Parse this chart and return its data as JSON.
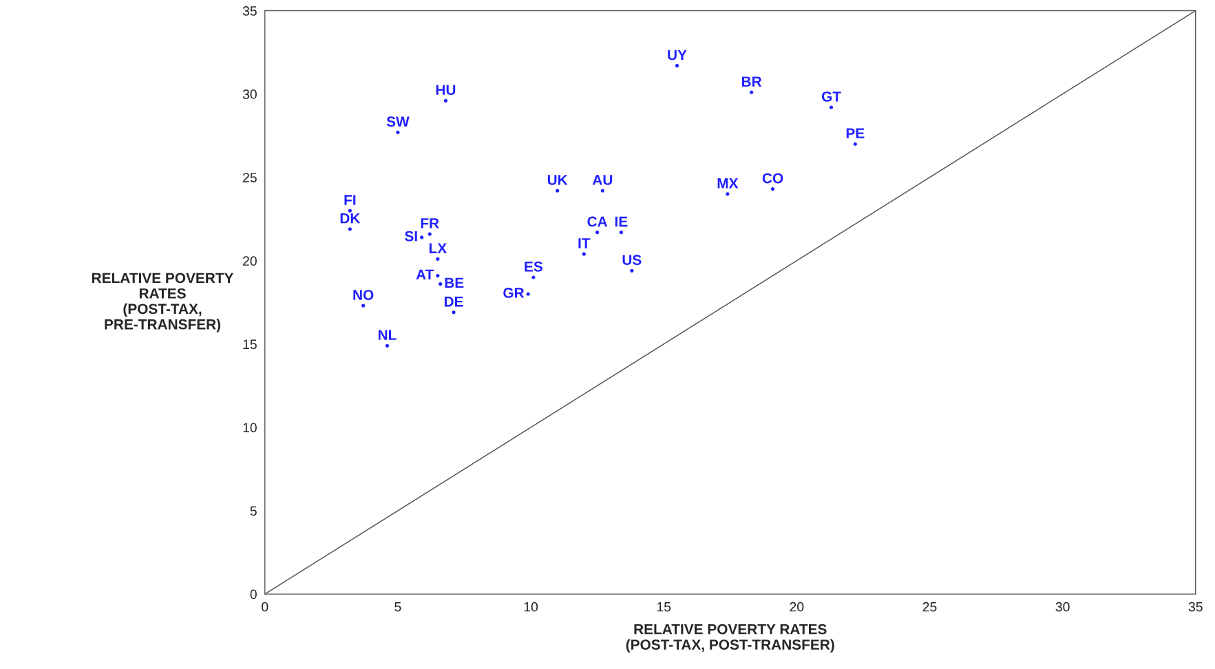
{
  "chart_data": {
    "type": "scatter",
    "xlabel": "RELATIVE POVERTY RATES\n(POST-TAX, POST-TRANSFER)",
    "ylabel": "RELATIVE POVERTY\nRATES\n(POST-TAX,\nPRE-TRANSFER)",
    "xlim": [
      0,
      35
    ],
    "ylim": [
      0,
      35
    ],
    "xticks": [
      0,
      5,
      10,
      15,
      20,
      25,
      30,
      35
    ],
    "yticks": [
      0,
      5,
      10,
      15,
      20,
      25,
      30,
      35
    ],
    "grid": false,
    "legend": false,
    "marker": "circle",
    "series": [
      {
        "name": "UY",
        "color": "#1f1fff",
        "x": [
          15.5
        ],
        "values": [
          31.7
        ]
      },
      {
        "name": "BR",
        "color": "#1f1fff",
        "x": [
          18.3
        ],
        "values": [
          30.1
        ]
      },
      {
        "name": "GT",
        "color": "#1f1fff",
        "x": [
          21.3
        ],
        "values": [
          29.2
        ]
      },
      {
        "name": "PE",
        "color": "#1f1fff",
        "x": [
          22.2
        ],
        "values": [
          27.0
        ]
      },
      {
        "name": "HU",
        "color": "#1f1fff",
        "x": [
          6.8
        ],
        "values": [
          29.6
        ]
      },
      {
        "name": "SW",
        "color": "#1f1fff",
        "x": [
          5.0
        ],
        "values": [
          27.7
        ]
      },
      {
        "name": "UK",
        "color": "#1f1fff",
        "x": [
          11.0
        ],
        "values": [
          24.2
        ]
      },
      {
        "name": "AU",
        "color": "#1f1fff",
        "x": [
          12.7
        ],
        "values": [
          24.2
        ]
      },
      {
        "name": "MX",
        "color": "#1f1fff",
        "x": [
          17.4
        ],
        "values": [
          24.0
        ]
      },
      {
        "name": "CO",
        "color": "#1f1fff",
        "x": [
          19.1
        ],
        "values": [
          24.3
        ]
      },
      {
        "name": "FI",
        "color": "#1f1fff",
        "x": [
          3.2
        ],
        "values": [
          23.0
        ]
      },
      {
        "name": "DK",
        "color": "#1f1fff",
        "x": [
          3.2
        ],
        "values": [
          21.9
        ]
      },
      {
        "name": "FR",
        "color": "#1f1fff",
        "x": [
          6.2
        ],
        "values": [
          21.6
        ]
      },
      {
        "name": "SI",
        "color": "#1f1fff",
        "x": [
          5.9
        ],
        "values": [
          21.4
        ]
      },
      {
        "name": "CA",
        "color": "#1f1fff",
        "x": [
          12.5
        ],
        "values": [
          21.7
        ]
      },
      {
        "name": "IE",
        "color": "#1f1fff",
        "x": [
          13.4
        ],
        "values": [
          21.7
        ]
      },
      {
        "name": "LX",
        "color": "#1f1fff",
        "x": [
          6.5
        ],
        "values": [
          20.1
        ]
      },
      {
        "name": "IT",
        "color": "#1f1fff",
        "x": [
          12.0
        ],
        "values": [
          20.4
        ]
      },
      {
        "name": "US",
        "color": "#1f1fff",
        "x": [
          13.8
        ],
        "values": [
          19.4
        ]
      },
      {
        "name": "AT",
        "color": "#1f1fff",
        "x": [
          6.5
        ],
        "values": [
          19.1
        ]
      },
      {
        "name": "ES",
        "color": "#1f1fff",
        "x": [
          10.1
        ],
        "values": [
          19.0
        ]
      },
      {
        "name": "BE",
        "color": "#1f1fff",
        "x": [
          6.6
        ],
        "values": [
          18.6
        ]
      },
      {
        "name": "GR",
        "color": "#1f1fff",
        "x": [
          9.9
        ],
        "values": [
          18.0
        ]
      },
      {
        "name": "NO",
        "color": "#1f1fff",
        "x": [
          3.7
        ],
        "values": [
          17.3
        ]
      },
      {
        "name": "DE",
        "color": "#1f1fff",
        "x": [
          7.1
        ],
        "values": [
          16.9
        ]
      },
      {
        "name": "NL",
        "color": "#1f1fff",
        "x": [
          4.6
        ],
        "values": [
          14.9
        ]
      },
      {
        "type": "line",
        "color": "#555555",
        "x": [
          0,
          35
        ],
        "values": [
          0,
          35
        ],
        "marker": "none"
      }
    ]
  }
}
